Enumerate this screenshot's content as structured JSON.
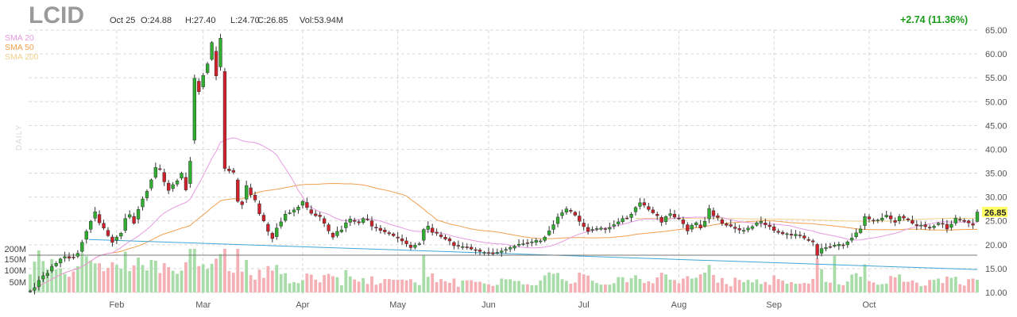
{
  "header": {
    "ticker": "LCID",
    "date": "Oct 25",
    "open": "O:24.88",
    "high": "H:27.40",
    "low": "L:24.70",
    "close": "C:26.85",
    "volume": "Vol:53.94M",
    "change": "+2.74 (11.36%)"
  },
  "legend": [
    {
      "label": "SMA 20",
      "color": "#e89be0"
    },
    {
      "label": "SMA 50",
      "color": "#f0a050"
    },
    {
      "label": "SMA 200",
      "color": "#f2d08a"
    }
  ],
  "side_label": "DAILY",
  "last_price_label": "26.85",
  "colors": {
    "up": "#2fae2f",
    "down": "#d0202a",
    "vol_up": "#a8dca8",
    "vol_down": "#f4b0b4",
    "trendline": "#3fa6d8",
    "hline": "#777777",
    "grid": "#d9d9d9",
    "last_price_bg": "#ffff66"
  },
  "chart_data": {
    "type": "candlestick",
    "price_axis": {
      "min": 10,
      "max": 65,
      "ticks": [
        "65.00",
        "60.00",
        "55.00",
        "50.00",
        "45.00",
        "40.00",
        "35.00",
        "30.00",
        "25.00",
        "20.00",
        "15.00",
        "10.00"
      ]
    },
    "volume_axis": {
      "ticks": [
        "200M",
        "150M",
        "100M",
        "50M"
      ]
    },
    "months": [
      {
        "label": "Feb",
        "date": "2021-02-01"
      },
      {
        "label": "Mar",
        "date": "2021-03-01"
      },
      {
        "label": "Apr",
        "date": "2021-04-01"
      },
      {
        "label": "May",
        "date": "2021-05-03"
      },
      {
        "label": "Jun",
        "date": "2021-06-01"
      },
      {
        "label": "Jul",
        "date": "2021-07-01"
      },
      {
        "label": "Aug",
        "date": "2021-08-02"
      },
      {
        "label": "Sep",
        "date": "2021-09-01"
      },
      {
        "label": "Oct",
        "date": "2021-10-01"
      }
    ],
    "candles_close": [
      10.3,
      11.0,
      12.5,
      13.5,
      14.0,
      15.4,
      16.1,
      17.0,
      17.5,
      17.2,
      17.4,
      18.2,
      20.5,
      22.8,
      24.9,
      26.9,
      24.6,
      23.5,
      21.9,
      20.5,
      21.6,
      22.4,
      25.5,
      26.3,
      24.5,
      27.4,
      29.6,
      31.2,
      33.6,
      36.2,
      35.8,
      33.2,
      31.4,
      32.6,
      33.4,
      35.0,
      31.5,
      37.5,
      54.9,
      52.1,
      55.5,
      57.9,
      62.4,
      55.4,
      63.3,
      36.0,
      35.5,
      35.2,
      29.1,
      28.4,
      32.4,
      30.5,
      29.4,
      26.5,
      25.0,
      22.8,
      21.3,
      23.5,
      24.8,
      26.4,
      26.7,
      27.3,
      27.9,
      29.1,
      27.8,
      26.6,
      26.1,
      25.9,
      24.5,
      22.9,
      21.6,
      22.8,
      23.1,
      24.6,
      25.4,
      24.9,
      24.6,
      25.5,
      25.3,
      23.9,
      23.6,
      23.0,
      22.7,
      22.3,
      21.9,
      21.4,
      20.8,
      20.2,
      19.4,
      19.9,
      20.2,
      23.2,
      23.9,
      22.6,
      22.4,
      21.7,
      21.2,
      20.8,
      19.8,
      19.7,
      19.6,
      19.4,
      19.1,
      18.9,
      18.6,
      18.4,
      18.2,
      18.1,
      18.4,
      18.7,
      19.0,
      19.4,
      19.7,
      20.1,
      20.2,
      20.4,
      20.6,
      20.9,
      20.8,
      21.6,
      22.9,
      24.2,
      25.8,
      26.7,
      27.5,
      27.0,
      26.2,
      24.9,
      23.8,
      22.8,
      23.2,
      23.4,
      23.5,
      23.3,
      23.6,
      24.2,
      24.8,
      25.5,
      25.6,
      26.4,
      27.8,
      28.8,
      28.3,
      27.4,
      26.7,
      26.1,
      24.7,
      25.9,
      26.5,
      25.8,
      25.5,
      24.4,
      22.9,
      24.1,
      24.6,
      23.5,
      24.9,
      27.6,
      26.1,
      25.7,
      24.5,
      24.1,
      23.9,
      23.4,
      23.1,
      23.0,
      23.5,
      23.8,
      24.6,
      24.9,
      24.2,
      23.8,
      23.0,
      22.6,
      22.3,
      22.3,
      22.0,
      22.2,
      21.9,
      21.4,
      20.9,
      20.6,
      17.8,
      19.2,
      19.4,
      19.6,
      19.9,
      20.1,
      19.9,
      20.6,
      21.4,
      22.5,
      23.3,
      25.9,
      25.4,
      25.0,
      25.2,
      25.6,
      26.2,
      25.4,
      24.7,
      25.9,
      25.6,
      25.2,
      24.5,
      24.0,
      24.1,
      23.8,
      23.6,
      23.9,
      24.5,
      24.4,
      23.3,
      24.3,
      25.6,
      25.2,
      24.9,
      24.6,
      24.1,
      26.85
    ]
  }
}
